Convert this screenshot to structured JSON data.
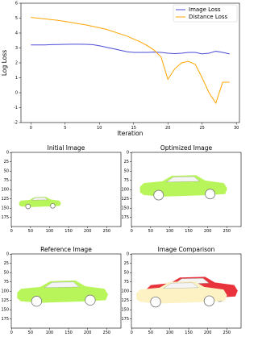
{
  "chart_data": [
    {
      "type": "line",
      "xlabel": "Iteration",
      "ylabel": "Log Loss",
      "x": [
        0,
        1,
        2,
        3,
        4,
        5,
        6,
        7,
        8,
        9,
        10,
        11,
        12,
        13,
        14,
        15,
        16,
        17,
        18,
        19,
        20,
        21,
        22,
        23,
        24,
        25,
        26,
        27,
        28,
        29
      ],
      "series": [
        {
          "name": "Image Loss",
          "color": "#4b4bd8",
          "values": [
            3.2,
            3.2,
            3.2,
            3.22,
            3.23,
            3.24,
            3.25,
            3.25,
            3.24,
            3.22,
            3.15,
            3.05,
            2.95,
            2.85,
            2.75,
            2.7,
            2.7,
            2.7,
            2.72,
            2.7,
            2.65,
            2.62,
            2.65,
            2.7,
            2.7,
            2.6,
            2.65,
            2.78,
            2.7,
            2.6
          ]
        },
        {
          "name": "Distance Loss",
          "color": "#ffa500",
          "values": [
            5.05,
            5.0,
            4.95,
            4.9,
            4.85,
            4.78,
            4.7,
            4.62,
            4.55,
            4.45,
            4.35,
            4.25,
            4.1,
            3.95,
            3.8,
            3.6,
            3.4,
            3.15,
            2.85,
            2.4,
            0.9,
            1.6,
            2.0,
            2.1,
            1.9,
            1.0,
            0.0,
            -0.7,
            0.7,
            0.7
          ]
        }
      ],
      "xlim": [
        -1.45,
        30.45
      ],
      "xticks": [
        0,
        5,
        10,
        15,
        20,
        25,
        30
      ],
      "ylim": [
        -2,
        6
      ],
      "yticks": [
        -2,
        -1,
        0,
        1,
        2,
        3,
        4,
        5,
        6
      ],
      "legend": "upper right"
    },
    {
      "type": "image",
      "title": "Initial Image",
      "xlim": [
        -0.5,
        287.5
      ],
      "ylim": [
        -0.5,
        199.5
      ],
      "xticks": [
        0,
        50,
        100,
        150,
        200,
        250
      ],
      "yticks": [
        0,
        25,
        50,
        75,
        100,
        125,
        150,
        175
      ]
    },
    {
      "type": "image",
      "title": "Optimized Image",
      "xlim": [
        -0.5,
        287.5
      ],
      "ylim": [
        -0.5,
        199.5
      ],
      "xticks": [
        0,
        50,
        100,
        150,
        200,
        250
      ],
      "yticks": [
        0,
        25,
        50,
        75,
        100,
        125,
        150,
        175
      ]
    },
    {
      "type": "image",
      "title": "Reference Image",
      "xlim": [
        -0.5,
        287.5
      ],
      "ylim": [
        -0.5,
        199.5
      ],
      "xticks": [
        0,
        50,
        100,
        150,
        200,
        250
      ],
      "yticks": [
        0,
        25,
        50,
        75,
        100,
        125,
        150,
        175
      ]
    },
    {
      "type": "image",
      "title": "Image Comparison",
      "xlim": [
        -0.5,
        287.5
      ],
      "ylim": [
        -0.5,
        199.5
      ],
      "xticks": [
        0,
        50,
        100,
        150,
        200,
        250
      ],
      "yticks": [
        0,
        25,
        50,
        75,
        100,
        125,
        150,
        175
      ]
    }
  ]
}
